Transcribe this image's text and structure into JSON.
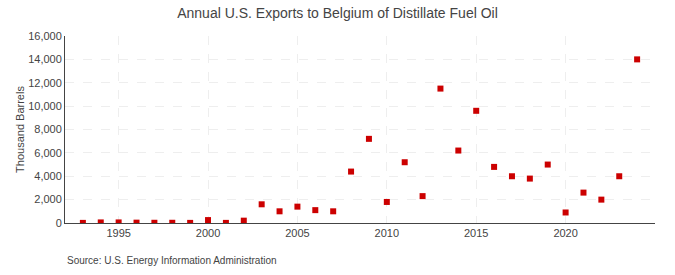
{
  "chart_data": {
    "type": "scatter",
    "title": "Annual U.S. Exports to Belgium of Distillate Fuel Oil",
    "ylabel": "Thousand Barrels",
    "annotations": [
      "Source: U.S. Energy Information Administration"
    ],
    "x": [
      1993,
      1994,
      1995,
      1996,
      1997,
      1998,
      1999,
      2000,
      2001,
      2002,
      2003,
      2004,
      2005,
      2006,
      2007,
      2008,
      2009,
      2010,
      2011,
      2012,
      2013,
      2014,
      2015,
      2016,
      2017,
      2018,
      2019,
      2020,
      2021,
      2022,
      2023,
      2024
    ],
    "values": [
      10,
      50,
      50,
      30,
      20,
      20,
      10,
      250,
      10,
      200,
      1600,
      1000,
      1400,
      1100,
      1000,
      4400,
      7200,
      1800,
      5200,
      2300,
      11500,
      6200,
      9600,
      4800,
      4000,
      3800,
      5000,
      900,
      2600,
      2000,
      4000,
      14000
    ],
    "color": "#cc0000",
    "marker": "square",
    "xlim": [
      1992,
      2025
    ],
    "xticks": [
      1995,
      2000,
      2005,
      2010,
      2015,
      2020
    ],
    "ylim": [
      0,
      16000
    ],
    "yticks": [
      0,
      {
        "value": 2000,
        "label": "2,000"
      },
      {
        "value": 4000,
        "label": "4,000"
      },
      {
        "value": 6000,
        "label": "6,000"
      },
      {
        "value": 8000,
        "label": "8,000"
      },
      {
        "value": 10000,
        "label": "10,000"
      },
      {
        "value": 12000,
        "label": "12,000"
      },
      {
        "value": 14000,
        "label": "14,000"
      },
      {
        "value": 16000,
        "label": "16,000"
      }
    ],
    "grid": true
  }
}
